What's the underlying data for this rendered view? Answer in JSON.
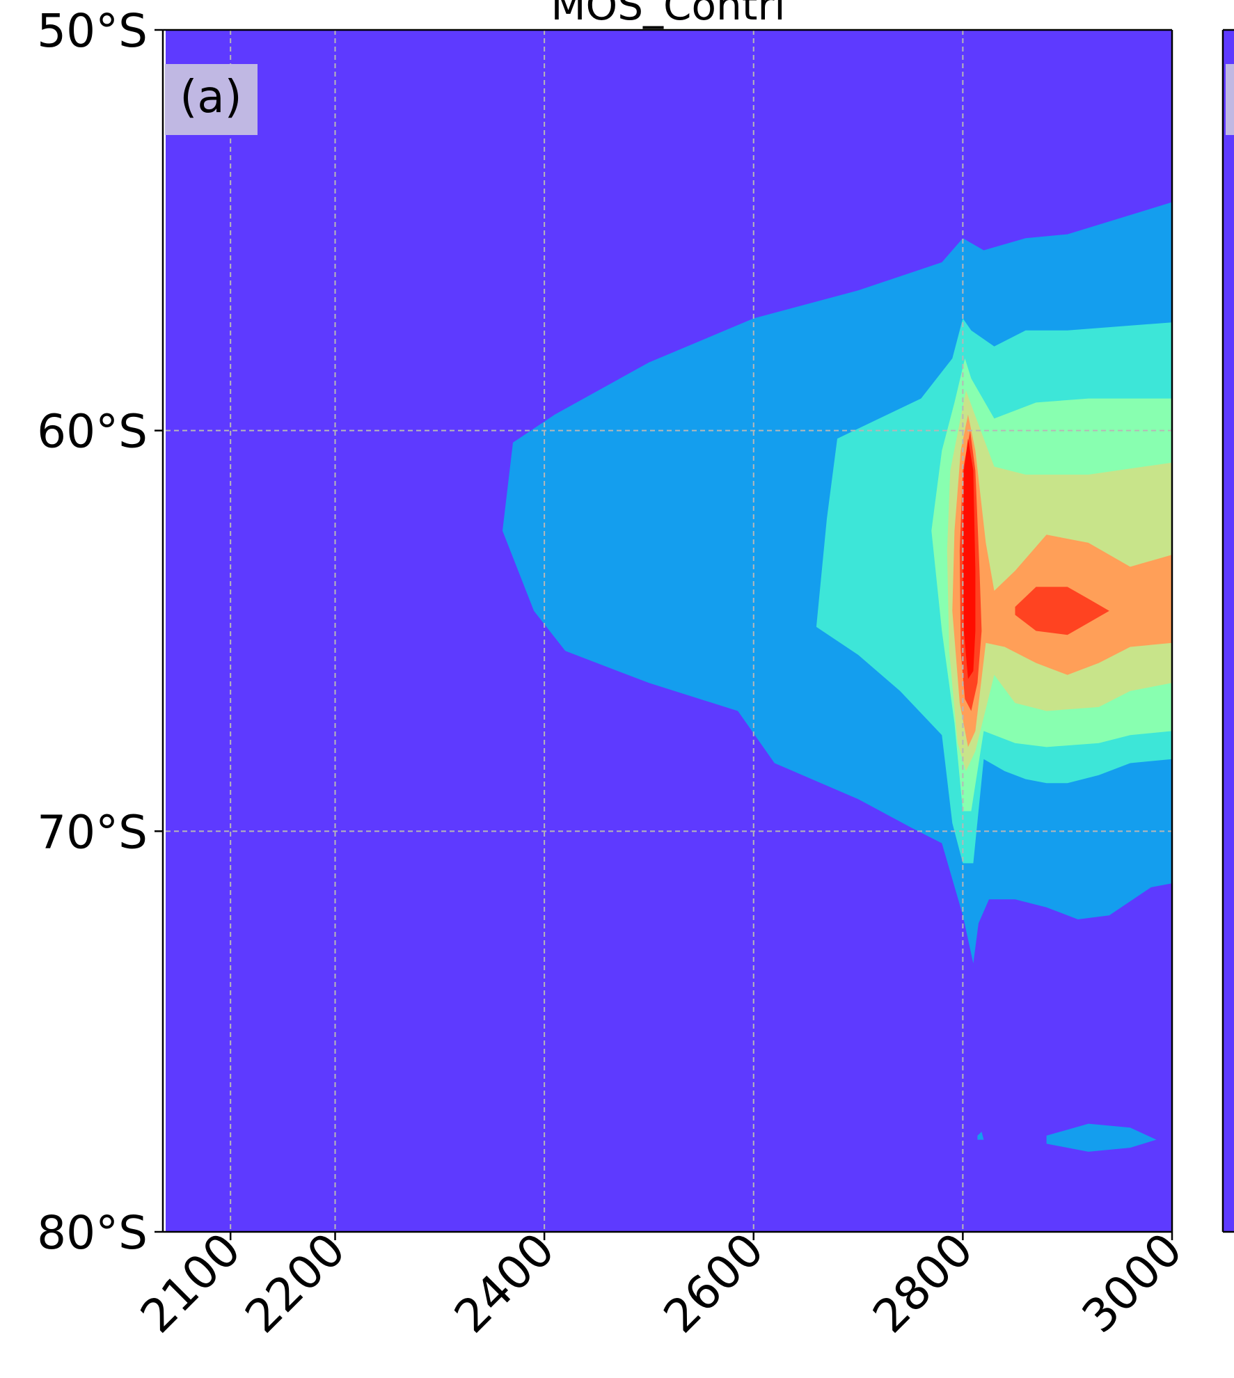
{
  "chart_data": {
    "type": "heatmap",
    "title": "MOS_Contri",
    "panel_label": "(a)",
    "xlabel": "",
    "ylabel": "",
    "x_ticks": [
      2100,
      2200,
      2400,
      2600,
      2800,
      3000
    ],
    "x_tick_labels": [
      "2100",
      "2200",
      "2400",
      "2600",
      "2800",
      "3000"
    ],
    "y_ticks": [
      -50,
      -60,
      -70,
      -80
    ],
    "y_tick_labels": [
      "50°S",
      "60°S",
      "70°S",
      "80°S"
    ],
    "xlim": [
      2038,
      3000
    ],
    "ylim": [
      -80,
      -50
    ],
    "grid": true,
    "colormap": "rainbow",
    "colors": {
      "background": "#5e3aff",
      "level1": "#149eee",
      "level2": "#3de6d8",
      "level3": "#88ffb0",
      "level4": "#c8e48a",
      "level5": "#ff9f58",
      "level6": "#ff4321",
      "level7": "#ff0d00"
    },
    "contour_regions": [
      {
        "level": "level1",
        "points": [
          [
            2800,
            -55.2
          ],
          [
            2820,
            -55.5
          ],
          [
            2860,
            -55.2
          ],
          [
            2900,
            -55.1
          ],
          [
            3000,
            -54.3
          ],
          [
            3000,
            -71.3
          ],
          [
            2980,
            -71.4
          ],
          [
            2940,
            -72.1
          ],
          [
            2910,
            -72.2
          ],
          [
            2880,
            -71.9
          ],
          [
            2850,
            -71.7
          ],
          [
            2825,
            -71.7
          ],
          [
            2815,
            -72.3
          ],
          [
            2810,
            -73.3
          ],
          [
            2800,
            -72.1
          ],
          [
            2780,
            -70.3
          ],
          [
            2750,
            -69.9
          ],
          [
            2700,
            -69.2
          ],
          [
            2620,
            -68.3
          ],
          [
            2585,
            -67.0
          ],
          [
            2500,
            -66.3
          ],
          [
            2420,
            -65.5
          ],
          [
            2390,
            -64.5
          ],
          [
            2360,
            -62.5
          ],
          [
            2370,
            -60.3
          ],
          [
            2410,
            -59.6
          ],
          [
            2500,
            -58.3
          ],
          [
            2600,
            -57.2
          ],
          [
            2700,
            -56.5
          ],
          [
            2780,
            -55.8
          ]
        ]
      },
      {
        "level": "level1",
        "points": [
          [
            2880,
            -77.6
          ],
          [
            2920,
            -77.3
          ],
          [
            2960,
            -77.4
          ],
          [
            2985,
            -77.7
          ],
          [
            2960,
            -77.9
          ],
          [
            2920,
            -78.0
          ],
          [
            2880,
            -77.8
          ]
        ]
      },
      {
        "level": "level1",
        "points": [
          [
            2814,
            -77.6
          ],
          [
            2818,
            -77.5
          ],
          [
            2820,
            -77.7
          ],
          [
            2814,
            -77.7
          ]
        ]
      },
      {
        "level": "level2",
        "points": [
          [
            2800,
            -57.2
          ],
          [
            2808,
            -57.5
          ],
          [
            2830,
            -57.9
          ],
          [
            2860,
            -57.5
          ],
          [
            2900,
            -57.5
          ],
          [
            3000,
            -57.3
          ],
          [
            3000,
            -68.2
          ],
          [
            2960,
            -68.3
          ],
          [
            2930,
            -68.6
          ],
          [
            2900,
            -68.8
          ],
          [
            2880,
            -68.8
          ],
          [
            2860,
            -68.7
          ],
          [
            2840,
            -68.5
          ],
          [
            2820,
            -68.2
          ],
          [
            2810,
            -70.8
          ],
          [
            2800,
            -70.8
          ],
          [
            2790,
            -69.8
          ],
          [
            2780,
            -67.6
          ],
          [
            2740,
            -66.5
          ],
          [
            2700,
            -65.6
          ],
          [
            2660,
            -64.9
          ],
          [
            2670,
            -62.2
          ],
          [
            2680,
            -60.2
          ],
          [
            2760,
            -59.2
          ],
          [
            2790,
            -58.2
          ]
        ]
      },
      {
        "level": "level3",
        "points": [
          [
            2802,
            -58.2
          ],
          [
            2808,
            -58.7
          ],
          [
            2830,
            -59.7
          ],
          [
            2870,
            -59.3
          ],
          [
            2920,
            -59.2
          ],
          [
            3000,
            -59.2
          ],
          [
            3000,
            -67.5
          ],
          [
            2960,
            -67.6
          ],
          [
            2930,
            -67.8
          ],
          [
            2880,
            -67.9
          ],
          [
            2850,
            -67.8
          ],
          [
            2820,
            -67.5
          ],
          [
            2808,
            -69.5
          ],
          [
            2800,
            -69.5
          ],
          [
            2792,
            -67.3
          ],
          [
            2780,
            -65.0
          ],
          [
            2770,
            -62.5
          ],
          [
            2780,
            -60.5
          ],
          [
            2792,
            -59.3
          ]
        ]
      },
      {
        "level": "level4",
        "points": [
          [
            2803,
            -59.0
          ],
          [
            2810,
            -59.5
          ],
          [
            2830,
            -60.9
          ],
          [
            2860,
            -61.1
          ],
          [
            2920,
            -61.1
          ],
          [
            3000,
            -60.8
          ],
          [
            3000,
            -66.3
          ],
          [
            2960,
            -66.5
          ],
          [
            2930,
            -66.9
          ],
          [
            2880,
            -67.0
          ],
          [
            2850,
            -66.8
          ],
          [
            2830,
            -66.1
          ],
          [
            2812,
            -68.0
          ],
          [
            2803,
            -68.5
          ],
          [
            2795,
            -67.8
          ],
          [
            2787,
            -65.5
          ],
          [
            2785,
            -63.0
          ],
          [
            2788,
            -61.0
          ],
          [
            2797,
            -59.8
          ]
        ]
      },
      {
        "level": "level5",
        "points": [
          [
            2805,
            -59.6
          ],
          [
            2812,
            -60.5
          ],
          [
            2822,
            -62.8
          ],
          [
            2830,
            -64.0
          ],
          [
            2850,
            -63.5
          ],
          [
            2880,
            -62.6
          ],
          [
            2920,
            -62.8
          ],
          [
            2960,
            -63.4
          ],
          [
            3000,
            -63.1
          ],
          [
            3000,
            -65.3
          ],
          [
            2960,
            -65.4
          ],
          [
            2930,
            -65.8
          ],
          [
            2900,
            -66.1
          ],
          [
            2870,
            -65.8
          ],
          [
            2840,
            -65.4
          ],
          [
            2822,
            -65.3
          ],
          [
            2812,
            -67.5
          ],
          [
            2805,
            -67.9
          ],
          [
            2797,
            -66.8
          ],
          [
            2790,
            -64.5
          ],
          [
            2792,
            -62.5
          ],
          [
            2798,
            -60.5
          ]
        ]
      },
      {
        "level": "level6",
        "points": [
          [
            2807,
            -60.0
          ],
          [
            2812,
            -61.0
          ],
          [
            2816,
            -63.5
          ],
          [
            2818,
            -65.0
          ],
          [
            2814,
            -66.3
          ],
          [
            2808,
            -67.0
          ],
          [
            2802,
            -66.7
          ],
          [
            2798,
            -65.5
          ],
          [
            2797,
            -63.0
          ],
          [
            2800,
            -61.0
          ]
        ]
      },
      {
        "level": "level6",
        "points": [
          [
            2850,
            -64.4
          ],
          [
            2870,
            -63.9
          ],
          [
            2900,
            -63.9
          ],
          [
            2920,
            -64.2
          ],
          [
            2940,
            -64.5
          ],
          [
            2920,
            -64.8
          ],
          [
            2900,
            -65.1
          ],
          [
            2870,
            -65.0
          ],
          [
            2850,
            -64.6
          ]
        ]
      },
      {
        "level": "level7",
        "points": [
          [
            2805,
            -60.2
          ],
          [
            2810,
            -61.0
          ],
          [
            2812,
            -63.5
          ],
          [
            2812,
            -65.0
          ],
          [
            2810,
            -66.0
          ],
          [
            2805,
            -66.2
          ],
          [
            2801,
            -65.0
          ],
          [
            2800,
            -63.0
          ],
          [
            2801,
            -61.0
          ]
        ]
      }
    ]
  }
}
